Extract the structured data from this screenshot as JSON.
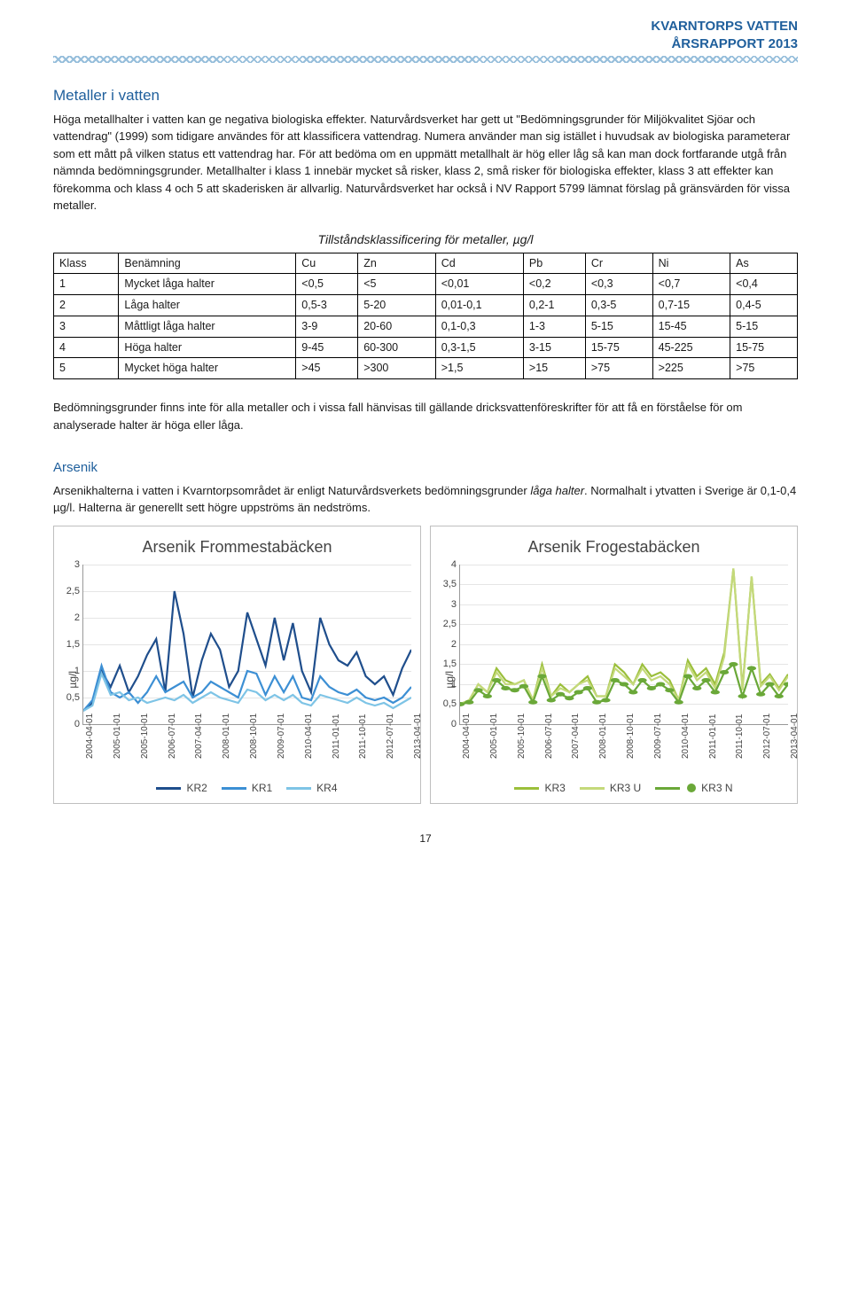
{
  "header": {
    "line1": "KVARNTORPS VATTEN",
    "line2": "ÅRSRAPPORT 2013"
  },
  "section": {
    "title": "Metaller i vatten",
    "para1": "Höga metallhalter i vatten kan ge negativa biologiska effekter. Naturvårdsverket har gett ut \"Bedömningsgrunder för Miljökvalitet Sjöar och vattendrag\" (1999) som tidigare användes för att klassificera vattendrag. Numera använder man sig istället i huvudsak av biologiska parameterar som ett mått på vilken status ett vattendrag har. För att bedöma om en uppmätt metallhalt är hög eller låg så kan man dock fortfarande utgå från nämnda bedömningsgrunder. Metallhalter i klass 1 innebär mycket så risker, klass 2, små risker för biologiska effekter, klass 3 att effekter kan förekomma och klass 4 och 5 att skaderisken är allvarlig. Naturvårdsverket har också i NV Rapport 5799 lämnat förslag på gränsvärden för vissa metaller."
  },
  "table": {
    "caption": "Tillståndsklassificering för metaller, µg/l",
    "columns": [
      "Klass",
      "Benämning",
      "Cu",
      "Zn",
      "Cd",
      "Pb",
      "Cr",
      "Ni",
      "As"
    ],
    "rows": [
      [
        "1",
        "Mycket låga halter",
        "<0,5",
        "<5",
        "<0,01",
        "<0,2",
        "<0,3",
        "<0,7",
        "<0,4"
      ],
      [
        "2",
        "Låga halter",
        "0,5-3",
        "5-20",
        "0,01-0,1",
        "0,2-1",
        "0,3-5",
        "0,7-15",
        "0,4-5"
      ],
      [
        "3",
        "Måttligt låga halter",
        "3-9",
        "20-60",
        "0,1-0,3",
        "1-3",
        "5-15",
        "15-45",
        "5-15"
      ],
      [
        "4",
        "Höga halter",
        "9-45",
        "60-300",
        "0,3-1,5",
        "3-15",
        "15-75",
        "45-225",
        "15-75"
      ],
      [
        "5",
        "Mycket höga halter",
        ">45",
        ">300",
        ">1,5",
        ">15",
        ">75",
        ">225",
        ">75"
      ]
    ]
  },
  "para2": "Bedömningsgrunder finns inte för alla metaller och i vissa fall hänvisas till gällande dricksvattenföreskrifter för att få en förståelse för om analyserade halter är höga eller låga.",
  "arsenik": {
    "title": "Arsenik",
    "para_a": "Arsenikhalterna i vatten i Kvarntorpsområdet är enligt Naturvårdsverkets bedömningsgrunder ",
    "para_b": "låga halter",
    "para_c": ". Normalhalt i ytvatten i Sverige är 0,1-0,4 µg/l. Halterna är generellt sett högre uppströms än nedströms."
  },
  "x_labels": [
    "2004-04-01",
    "2005-01-01",
    "2005-10-01",
    "2006-07-01",
    "2007-04-01",
    "2008-01-01",
    "2008-10-01",
    "2009-07-01",
    "2010-04-01",
    "2011-01-01",
    "2011-10-01",
    "2012-07-01",
    "2013-04-01"
  ],
  "chart1": {
    "type": "line",
    "title": "Arsenik Frommestabäcken",
    "ylabel": "µg/l",
    "ylim": [
      0,
      3
    ],
    "ytick_step": 0.5,
    "yticks": [
      "0",
      "0,5",
      "1",
      "1,5",
      "2",
      "2,5",
      "3"
    ],
    "background_color": "#ffffff",
    "grid_color": "#e5e5e5",
    "line_width": 2.2,
    "series": [
      {
        "name": "KR2",
        "color": "#1f4e8c",
        "values": [
          0.25,
          0.4,
          1.0,
          0.7,
          1.1,
          0.6,
          0.9,
          1.3,
          1.6,
          0.6,
          2.5,
          1.7,
          0.5,
          1.2,
          1.7,
          1.4,
          0.7,
          1.0,
          2.1,
          1.6,
          1.1,
          2.0,
          1.2,
          1.9,
          1.0,
          0.6,
          2.0,
          1.5,
          1.2,
          1.1,
          1.35,
          0.9,
          0.75,
          0.9,
          0.55,
          1.05,
          1.4
        ]
      },
      {
        "name": "KR1",
        "color": "#3c8fd4",
        "values": [
          0.25,
          0.45,
          1.1,
          0.6,
          0.5,
          0.6,
          0.4,
          0.6,
          0.9,
          0.6,
          0.7,
          0.8,
          0.5,
          0.6,
          0.8,
          0.7,
          0.6,
          0.5,
          1.0,
          0.95,
          0.55,
          0.9,
          0.6,
          0.9,
          0.5,
          0.45,
          0.9,
          0.7,
          0.6,
          0.55,
          0.65,
          0.5,
          0.45,
          0.5,
          0.4,
          0.5,
          0.7
        ]
      },
      {
        "name": "KR4",
        "color": "#7ec4e6",
        "values": [
          0.25,
          0.35,
          0.95,
          0.55,
          0.6,
          0.45,
          0.5,
          0.4,
          0.45,
          0.5,
          0.45,
          0.55,
          0.4,
          0.5,
          0.6,
          0.5,
          0.45,
          0.4,
          0.65,
          0.6,
          0.45,
          0.55,
          0.45,
          0.55,
          0.4,
          0.35,
          0.55,
          0.5,
          0.45,
          0.4,
          0.5,
          0.4,
          0.35,
          0.4,
          0.3,
          0.4,
          0.5
        ]
      }
    ]
  },
  "chart2": {
    "type": "line",
    "title": "Arsenik Frogestabäcken",
    "ylabel": "µg/l",
    "ylim": [
      0,
      4
    ],
    "ytick_step": 0.5,
    "yticks": [
      "0",
      "0,5",
      "1",
      "1,5",
      "2",
      "2,5",
      "3",
      "3,5",
      "4"
    ],
    "background_color": "#ffffff",
    "grid_color": "#e5e5e5",
    "line_width": 2.2,
    "marker_series": "KR3 N",
    "marker_color": "#6aa838",
    "marker_size": 5,
    "series": [
      {
        "name": "KR3",
        "color": "#9bbf3b",
        "values": [
          0.5,
          0.6,
          1.0,
          0.8,
          1.4,
          1.1,
          1.0,
          1.1,
          0.6,
          1.5,
          0.7,
          1.0,
          0.8,
          1.0,
          1.2,
          0.7,
          0.7,
          1.5,
          1.3,
          1.0,
          1.5,
          1.2,
          1.3,
          1.1,
          0.6,
          1.6,
          1.2,
          1.4,
          1.0,
          1.8,
          3.9,
          0.9,
          3.7,
          1.0,
          1.25,
          0.9,
          1.25
        ]
      },
      {
        "name": "KR3 U",
        "color": "#c4d97a",
        "values": [
          0.5,
          0.6,
          1.0,
          0.8,
          1.3,
          1.0,
          1.0,
          1.1,
          0.6,
          1.4,
          0.7,
          0.9,
          0.8,
          1.0,
          1.1,
          0.7,
          0.7,
          1.4,
          1.2,
          1.0,
          1.4,
          1.1,
          1.2,
          1.0,
          0.6,
          1.5,
          1.1,
          1.3,
          0.9,
          1.7,
          3.9,
          0.85,
          3.7,
          0.95,
          1.2,
          0.85,
          1.2
        ]
      },
      {
        "name": "KR3 N",
        "color": "#6aa838",
        "use_markers": true,
        "values": [
          0.5,
          0.55,
          0.85,
          0.7,
          1.1,
          0.9,
          0.85,
          0.95,
          0.55,
          1.2,
          0.6,
          0.75,
          0.65,
          0.8,
          0.9,
          0.55,
          0.6,
          1.1,
          1.0,
          0.8,
          1.1,
          0.9,
          1.0,
          0.85,
          0.55,
          1.2,
          0.9,
          1.1,
          0.8,
          1.3,
          1.5,
          0.7,
          1.4,
          0.75,
          1.0,
          0.7,
          1.0
        ]
      }
    ]
  },
  "page_number": "17"
}
